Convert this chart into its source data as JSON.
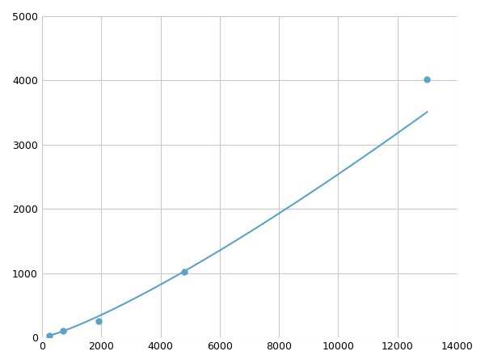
{
  "x_points": [
    250,
    700,
    1900,
    4800,
    13000
  ],
  "y_points": [
    30,
    100,
    250,
    1020,
    4020
  ],
  "line_color": "#5ba3c9",
  "marker_color": "#5ba3c9",
  "marker_size": 5,
  "line_width": 1.5,
  "xlim": [
    0,
    14000
  ],
  "ylim": [
    0,
    5000
  ],
  "xticks": [
    0,
    2000,
    4000,
    6000,
    8000,
    10000,
    12000,
    14000
  ],
  "yticks": [
    0,
    1000,
    2000,
    3000,
    4000,
    5000
  ],
  "grid_color": "#c8c8c8",
  "grid_linewidth": 0.8,
  "background_color": "#ffffff",
  "figsize": [
    6.0,
    4.5
  ],
  "dpi": 100
}
